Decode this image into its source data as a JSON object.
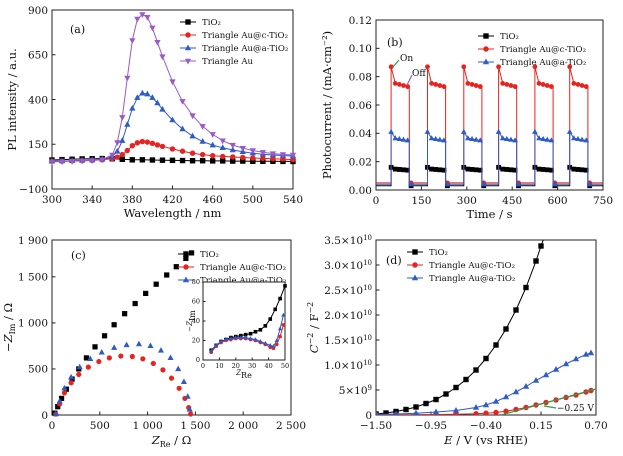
{
  "figure": {
    "background": "#ffffff"
  },
  "chart_data": [
    {
      "id": "a",
      "type": "line",
      "panel_label": "(a)",
      "xlabel": "Wavelength / nm",
      "ylabel": "PL intensity / a.u.",
      "xlim": [
        300,
        540
      ],
      "ylim": [
        -100,
        900
      ],
      "xticks": [
        300,
        340,
        380,
        420,
        460,
        500,
        540
      ],
      "yticks": [
        -100,
        150,
        400,
        650,
        900
      ],
      "xtick_labels": [
        "300",
        "340",
        "380",
        "420",
        "460",
        "500",
        "540"
      ],
      "ytick_labels": [
        "−100",
        "150",
        "400",
        "650",
        "900"
      ],
      "legend_position": "top-right",
      "series": [
        {
          "name": "TiO2",
          "legend_label": "TiO₂",
          "color": "#000000",
          "marker": "square",
          "x": [
            300,
            310,
            320,
            330,
            340,
            350,
            360,
            370,
            380,
            390,
            400,
            410,
            420,
            430,
            440,
            450,
            460,
            470,
            480,
            490,
            500,
            510,
            520,
            530,
            540
          ],
          "y": [
            62,
            64,
            66,
            68,
            69,
            70,
            69,
            66,
            63,
            63,
            62,
            61,
            60,
            59,
            58,
            58,
            57,
            57,
            56,
            56,
            55,
            55,
            55,
            54,
            54
          ]
        },
        {
          "name": "Triangle Au@c-TiO2",
          "legend_label": "Triangle Au@c-TiO₂",
          "color": "#e8221f",
          "marker": "circle",
          "x": [
            300,
            310,
            320,
            330,
            340,
            350,
            360,
            365,
            370,
            375,
            380,
            385,
            390,
            395,
            400,
            405,
            410,
            420,
            430,
            440,
            450,
            460,
            470,
            480,
            490,
            500,
            510,
            520,
            530,
            540
          ],
          "y": [
            55,
            56,
            57,
            58,
            60,
            63,
            70,
            78,
            92,
            115,
            142,
            158,
            165,
            162,
            155,
            146,
            138,
            124,
            111,
            100,
            92,
            86,
            82,
            79,
            76,
            73,
            71,
            69,
            67,
            64
          ]
        },
        {
          "name": "Triangle Au@a-TiO2",
          "legend_label": "Triangle Au@a-TiO₂",
          "color": "#2d5bc7",
          "marker": "triangle-up",
          "x": [
            300,
            310,
            320,
            330,
            340,
            350,
            360,
            365,
            370,
            375,
            380,
            385,
            390,
            395,
            400,
            405,
            410,
            420,
            430,
            440,
            450,
            460,
            470,
            480,
            490,
            500,
            510,
            520,
            530,
            540
          ],
          "y": [
            55,
            56,
            58,
            60,
            62,
            66,
            80,
            110,
            170,
            260,
            350,
            410,
            435,
            430,
            410,
            380,
            345,
            285,
            235,
            195,
            165,
            145,
            130,
            118,
            108,
            100,
            94,
            90,
            87,
            84
          ]
        },
        {
          "name": "Triangle Au",
          "legend_label": "Triangle Au",
          "color": "#9b59c9",
          "marker": "triangle-down",
          "x": [
            300,
            310,
            320,
            330,
            340,
            350,
            360,
            365,
            370,
            375,
            380,
            385,
            390,
            395,
            400,
            405,
            410,
            420,
            430,
            440,
            450,
            460,
            470,
            480,
            490,
            500,
            510,
            520,
            530,
            540
          ],
          "y": [
            52,
            53,
            55,
            57,
            59,
            64,
            90,
            160,
            300,
            520,
            730,
            850,
            875,
            860,
            800,
            720,
            640,
            500,
            390,
            310,
            250,
            205,
            170,
            145,
            128,
            115,
            105,
            98,
            93,
            90
          ]
        }
      ]
    },
    {
      "id": "b",
      "type": "line",
      "panel_label": "(b)",
      "xlabel": "Time / s",
      "ylabel": "Photocurrent / (mA·cm⁻²)",
      "xlim": [
        0,
        750
      ],
      "ylim": [
        0,
        0.12
      ],
      "xticks": [
        0,
        150,
        300,
        450,
        600,
        750
      ],
      "yticks": [
        0,
        0.02,
        0.04,
        0.06,
        0.08,
        0.1,
        0.12
      ],
      "xtick_labels": [
        "0",
        "150",
        "300",
        "450",
        "600",
        "750"
      ],
      "ytick_labels": [
        "0.00",
        "0.02",
        "0.04",
        "0.06",
        "0.08",
        "0.10",
        "0.12"
      ],
      "legend_position": "top-right",
      "annotations": [
        "On",
        "Off"
      ],
      "cycles": {
        "on_times": [
          50,
          170,
          290,
          405,
          525,
          640
        ],
        "on_duration": 60,
        "end_time": 750
      },
      "series": [
        {
          "name": "TiO2",
          "legend_label": "TiO₂",
          "color": "#000000",
          "marker": "square",
          "dark_level": 0.003,
          "spike": 0.016,
          "plateau": [
            0.015,
            0.014
          ]
        },
        {
          "name": "Triangle Au@c-TiO2",
          "legend_label": "Triangle Au@c-TiO₂",
          "color": "#e8221f",
          "marker": "circle",
          "dark_level": 0.005,
          "spike": 0.087,
          "plateau": [
            0.076,
            0.073
          ]
        },
        {
          "name": "Triangle Au@a-TiO2",
          "legend_label": "Triangle Au@a-TiO₂",
          "color": "#2d5bc7",
          "marker": "triangle-up",
          "dark_level": 0.004,
          "spike": 0.041,
          "plateau": [
            0.037,
            0.035
          ]
        }
      ]
    },
    {
      "id": "c",
      "type": "scatter",
      "panel_label": "(c)",
      "xlabel_parts": {
        "main": "Z",
        "sub": "Re",
        "unit": " / Ω"
      },
      "ylabel_parts": {
        "main": "−Z",
        "sub": "Im",
        "unit": " / Ω"
      },
      "xlim": [
        0,
        2500
      ],
      "ylim": [
        0,
        1900
      ],
      "xticks": [
        0,
        500,
        1000,
        1500,
        2000,
        2500
      ],
      "yticks": [
        0,
        500,
        1000,
        1500,
        1900
      ],
      "xtick_labels": [
        "0",
        "500",
        "1 000",
        "1 500",
        "2 000",
        "2 500"
      ],
      "ytick_labels": [
        "0",
        "500",
        "1 000",
        "1 500",
        "1 900"
      ],
      "legend_position": "top-right",
      "series": [
        {
          "name": "TiO2",
          "legend_label": "TiO₂",
          "color": "#000000",
          "marker": "square",
          "x": [
            30,
            60,
            100,
            150,
            210,
            280,
            360,
            450,
            550,
            650,
            760,
            870,
            980,
            1090,
            1200,
            1300,
            1400,
            1460
          ],
          "y": [
            20,
            90,
            180,
            280,
            390,
            500,
            620,
            740,
            860,
            980,
            1100,
            1210,
            1320,
            1420,
            1520,
            1610,
            1700,
            1760
          ]
        },
        {
          "name": "Triangle Au@c-TiO2",
          "legend_label": "Triangle Au@c-TiO₂",
          "color": "#e8221f",
          "marker": "circle",
          "x": [
            40,
            80,
            130,
            200,
            280,
            380,
            490,
            600,
            720,
            840,
            950,
            1060,
            1160,
            1250,
            1330,
            1390,
            1430,
            1450
          ],
          "y": [
            10,
            120,
            240,
            350,
            440,
            520,
            580,
            620,
            640,
            635,
            610,
            560,
            490,
            400,
            290,
            180,
            80,
            10
          ]
        },
        {
          "name": "Triangle Au@a-TiO2",
          "legend_label": "Triangle Au@a-TiO₂",
          "color": "#2d5bc7",
          "marker": "triangle-up",
          "x": [
            40,
            80,
            130,
            200,
            290,
            400,
            520,
            650,
            780,
            910,
            1030,
            1140,
            1240,
            1320,
            1380,
            1420,
            1440
          ],
          "y": [
            10,
            150,
            290,
            410,
            520,
            610,
            680,
            730,
            760,
            770,
            750,
            700,
            620,
            500,
            360,
            200,
            60
          ]
        }
      ]
    },
    {
      "id": "c-inset",
      "type": "scatter",
      "xlabel_parts": {
        "main": "Z",
        "sub": "Re",
        "unit": ""
      },
      "ylabel_parts": {
        "main": "−Z",
        "sub": "Im",
        "unit": ""
      },
      "xlim": [
        0,
        50
      ],
      "ylim": [
        0,
        80
      ],
      "xticks": [
        0,
        10,
        20,
        30,
        40,
        50
      ],
      "yticks": [
        0,
        20,
        40,
        60,
        80
      ],
      "xtick_labels": [
        "0",
        "10",
        "20",
        "30",
        "40",
        "50"
      ],
      "ytick_labels": [
        "0",
        "20",
        "40",
        "60",
        "80"
      ],
      "series": [
        {
          "name": "TiO2",
          "color": "#000000",
          "marker": "square",
          "x": [
            5,
            8,
            11,
            14,
            17,
            20,
            23,
            26,
            29,
            32,
            35,
            38,
            41,
            44,
            47,
            50
          ],
          "y": [
            10,
            15,
            19,
            21,
            23,
            24,
            25,
            26,
            27,
            29,
            31,
            35,
            42,
            52,
            63,
            76
          ]
        },
        {
          "name": "Triangle Au@c-TiO2",
          "color": "#e8221f",
          "marker": "circle",
          "x": [
            5,
            8,
            11,
            14,
            17,
            20,
            23,
            26,
            29,
            32,
            35,
            38,
            41,
            43,
            45,
            47,
            49
          ],
          "y": [
            8,
            14,
            18,
            20,
            21,
            22,
            22,
            22,
            21,
            20,
            18,
            16,
            13,
            12,
            16,
            24,
            36
          ]
        },
        {
          "name": "Triangle Au@a-TiO2",
          "color": "#2d5bc7",
          "marker": "triangle-up",
          "x": [
            5,
            8,
            11,
            14,
            17,
            20,
            23,
            26,
            29,
            32,
            35,
            38,
            41,
            43,
            45,
            47,
            49
          ],
          "y": [
            9,
            15,
            19,
            21,
            22,
            23,
            23,
            23,
            22,
            21,
            19,
            17,
            15,
            14,
            20,
            32,
            46
          ]
        }
      ]
    },
    {
      "id": "d",
      "type": "line",
      "panel_label": "(d)",
      "xlabel": "E / V (vs RHE)",
      "ylabel_parts": {
        "main": "C",
        "sup": "−2",
        "unit": " / F",
        "unit_sup": "−2"
      },
      "xlim": [
        -1.5,
        0.7
      ],
      "ylim": [
        0,
        35000000000.0
      ],
      "xticks": [
        -1.5,
        -0.95,
        -0.4,
        0.15,
        0.7
      ],
      "yticks": [
        0,
        5000000000.0,
        10000000000.0,
        15000000000.0,
        20000000000.0,
        25000000000.0,
        30000000000.0,
        35000000000.0
      ],
      "xtick_labels": [
        "−1.50",
        "−0.95",
        "−0.40",
        "0.15",
        "0.70"
      ],
      "ytick_labels": [
        {
          "base": "0",
          "exp": ""
        },
        {
          "base": "5×10",
          "exp": "9"
        },
        {
          "base": "1.0×10",
          "exp": "10"
        },
        {
          "base": "1.5×10",
          "exp": "10"
        },
        {
          "base": "2.0×10",
          "exp": "10"
        },
        {
          "base": "2.5×10",
          "exp": "10"
        },
        {
          "base": "3.0×10",
          "exp": "10"
        },
        {
          "base": "3.5×10",
          "exp": "10"
        }
      ],
      "legend_position": "top-left",
      "annotation": "−0.25 V",
      "series": [
        {
          "name": "TiO2",
          "legend_label": "TiO₂",
          "color": "#000000",
          "marker": "square",
          "x": [
            -1.5,
            -1.4,
            -1.3,
            -1.2,
            -1.1,
            -1.0,
            -0.9,
            -0.8,
            -0.7,
            -0.6,
            -0.5,
            -0.4,
            -0.3,
            -0.2,
            -0.1,
            0.0,
            0.1,
            0.15,
            0.2
          ],
          "y": [
            200000000.0,
            400000000.0,
            700000000.0,
            1100000000.0,
            1600000000.0,
            2300000000.0,
            3100000000.0,
            4200000000.0,
            5500000000.0,
            7100000000.0,
            9000000000.0,
            11300000000.0,
            14000000000.0,
            17200000000.0,
            21000000000.0,
            25500000000.0,
            30800000000.0,
            33800000000.0,
            36500000000.0
          ]
        },
        {
          "name": "Triangle Au@c-TiO2",
          "legend_label": "Triangle Au@c-TiO₂",
          "color": "#e8221f",
          "marker": "circle",
          "x": [
            -1.5,
            -1.3,
            -1.1,
            -0.9,
            -0.7,
            -0.5,
            -0.4,
            -0.3,
            -0.2,
            -0.1,
            0.0,
            0.1,
            0.2,
            0.3,
            0.4,
            0.5,
            0.6,
            0.65
          ],
          "y": [
            50000000.0,
            60000000.0,
            80000000.0,
            100000000.0,
            150000000.0,
            250000000.0,
            350000000.0,
            500000000.0,
            750000000.0,
            1100000000.0,
            1500000000.0,
            2000000000.0,
            2500000000.0,
            3000000000.0,
            3500000000.0,
            4000000000.0,
            4600000000.0,
            4900000000.0
          ]
        },
        {
          "name": "Triangle Au@a-TiO2",
          "legend_label": "Triangle Au@a-TiO₂",
          "color": "#2d5bc7",
          "marker": "triangle-up",
          "x": [
            -1.5,
            -1.3,
            -1.1,
            -0.9,
            -0.7,
            -0.5,
            -0.4,
            -0.3,
            -0.2,
            -0.1,
            0.0,
            0.1,
            0.2,
            0.3,
            0.4,
            0.5,
            0.6,
            0.65
          ],
          "y": [
            100000000.0,
            200000000.0,
            350000000.0,
            600000000.0,
            900000000.0,
            1500000000.0,
            2000000000.0,
            2700000000.0,
            3600000000.0,
            4600000000.0,
            5700000000.0,
            6900000000.0,
            8000000000.0,
            9100000000.0,
            10200000000.0,
            11200000000.0,
            12100000000.0,
            12400000000.0
          ]
        }
      ]
    }
  ]
}
